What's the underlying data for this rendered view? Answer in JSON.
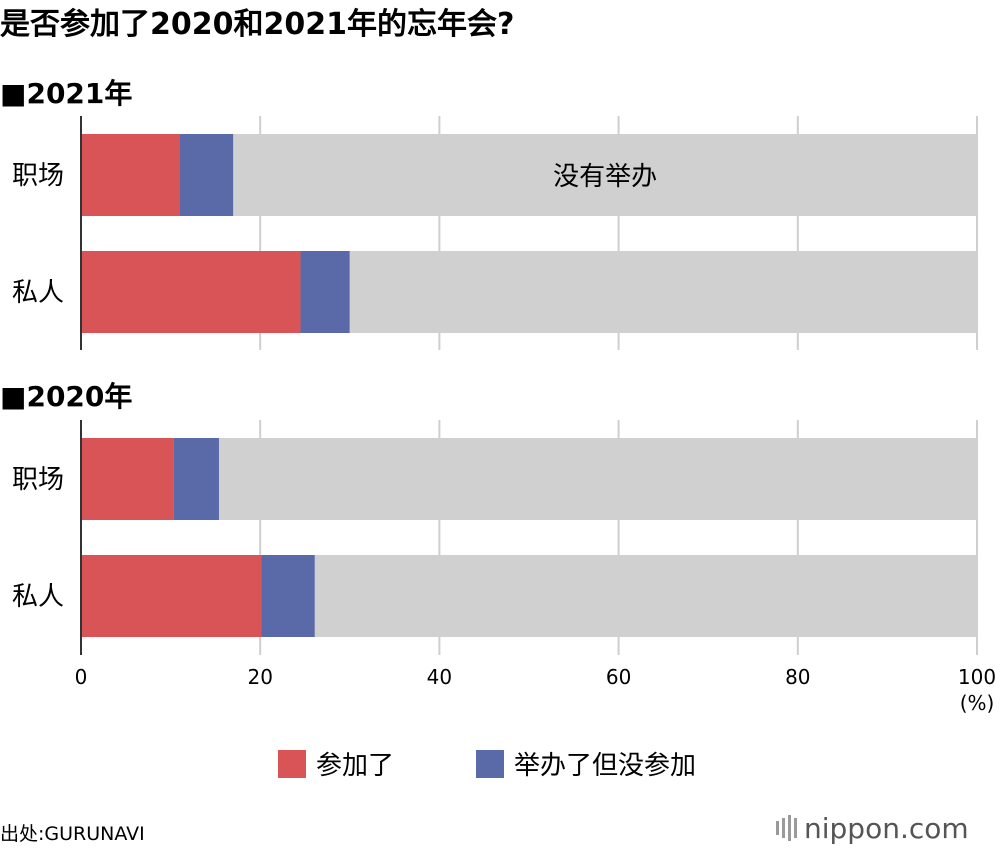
{
  "chart_data": {
    "type": "bar",
    "title": "是否参加了2020和2021年的忘年会?",
    "stacked": true,
    "panels": [
      {
        "label": "■2021年",
        "categories": [
          "职场",
          "私人"
        ],
        "series": [
          {
            "name": "参加了",
            "values": [
              11,
              24.5
            ]
          },
          {
            "name": "举办了但没参加",
            "values": [
              6,
              5.5
            ]
          },
          {
            "name": "没有举办",
            "values": [
              83,
              70
            ]
          }
        ]
      },
      {
        "label": "■2020年",
        "categories": [
          "职场",
          "私人"
        ],
        "series": [
          {
            "name": "参加了",
            "values": [
              10.3,
              20.1
            ]
          },
          {
            "name": "举办了但没参加",
            "values": [
              5.1,
              6.0
            ]
          },
          {
            "name": "没有举办",
            "values": [
              84.6,
              73.9
            ]
          }
        ]
      }
    ],
    "bar_annotation": "没有举办",
    "x_ticks": [
      "0",
      "20",
      "40",
      "60",
      "80",
      "100"
    ],
    "xlim": [
      0,
      100
    ],
    "x_unit": "(%)",
    "grid": true,
    "legend": [
      "参加了",
      "举办了但没参加"
    ],
    "legend_position": "bottom",
    "colors": {
      "参加了": "#d95456",
      "举办了但没参加": "#5a6aa8",
      "没有举办": "#d0d0d0",
      "grid": "#cfcfcf",
      "axis": "#333333"
    },
    "source": "出处:GURUNAVI",
    "brand": "nippon.com"
  }
}
